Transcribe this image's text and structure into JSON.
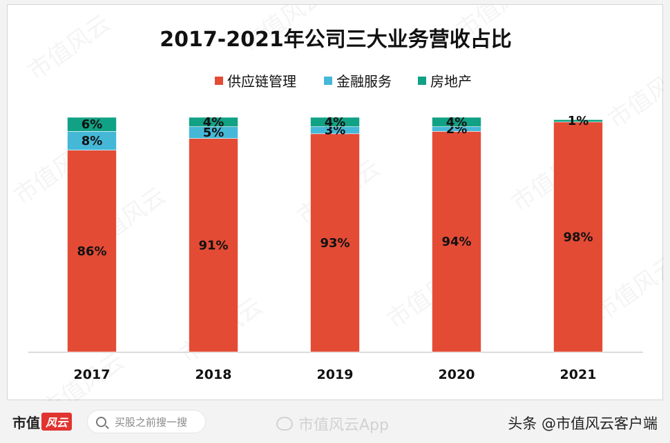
{
  "chart_data": {
    "type": "bar",
    "stacked": true,
    "title": "2017-2021年公司三大业务营收占比",
    "categories": [
      "2017",
      "2018",
      "2019",
      "2020",
      "2021"
    ],
    "series": [
      {
        "name": "供应链管理",
        "color": "#e34b35",
        "values": [
          86,
          91,
          93,
          94,
          98
        ],
        "labels": [
          "86%",
          "91%",
          "93%",
          "94%",
          "98%"
        ]
      },
      {
        "name": "金融服务",
        "color": "#45b8d8",
        "values": [
          8,
          5,
          3,
          2,
          0
        ],
        "labels": [
          "8%",
          "5%",
          "3%",
          "2%",
          ""
        ]
      },
      {
        "name": "房地产",
        "color": "#11a184",
        "values": [
          6,
          4,
          4,
          4,
          1
        ],
        "labels": [
          "6%",
          "4%",
          "4%",
          "4%",
          "1%"
        ]
      }
    ],
    "ylim": [
      0,
      100
    ],
    "legend_position": "top",
    "grid": false
  },
  "watermark": {
    "text": "市值风云"
  },
  "bottom_bar": {
    "brand": "市值",
    "brand_mark": "风云",
    "search_placeholder": "买股之前搜一搜",
    "weibo_watermark": "市值风云App",
    "toutiao_text": "头条 @市值风云客户端"
  }
}
